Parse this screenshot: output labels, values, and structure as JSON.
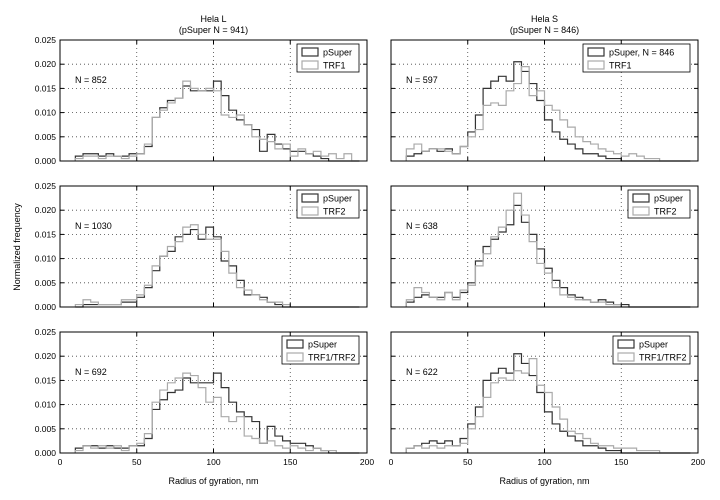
{
  "figure": {
    "ylabel": "Normalized frequency",
    "xlabel": "Radius of gyration, nm",
    "columns": [
      {
        "title_line1": "Hela L",
        "title_line2": "(pSuper N = 941)"
      },
      {
        "title_line1": "Hela S",
        "title_line2": "(pSuper N = 846)"
      }
    ]
  },
  "colors": {
    "series_dark": "#333333",
    "series_light": "#aaaaaa",
    "grid": "#444444"
  },
  "chart_data": [
    {
      "type": "histogram",
      "panel": "row1-col1",
      "annotation": "N = 852",
      "xlim": [
        0,
        200
      ],
      "ylim": [
        0,
        0.025
      ],
      "grid": true,
      "legend": "top-right",
      "xticks": [
        0,
        50,
        100,
        150,
        200
      ],
      "yticks": [
        0,
        0.005,
        0.01,
        0.015,
        0.02,
        0.025
      ],
      "bin_edges": [
        10,
        15,
        20,
        25,
        30,
        35,
        40,
        45,
        50,
        55,
        60,
        65,
        70,
        75,
        80,
        85,
        90,
        95,
        100,
        105,
        110,
        115,
        120,
        125,
        130,
        135,
        140,
        145,
        150,
        155,
        160,
        165,
        170,
        175,
        180,
        185,
        190,
        195
      ],
      "series": [
        {
          "name": "pSuper",
          "color": "#333333",
          "values": [
            0.001,
            0.0015,
            0.0015,
            0.001,
            0.0015,
            0.001,
            0.001,
            0.0015,
            0.0015,
            0.003,
            0.009,
            0.011,
            0.0125,
            0.013,
            0.0155,
            0.0145,
            0.0145,
            0.0145,
            0.0165,
            0.0135,
            0.0105,
            0.0085,
            0.0075,
            0.0065,
            0.002,
            0.0055,
            0.0035,
            0.0025,
            0.002,
            0.002,
            0.0015,
            0.001,
            0.0005,
            0,
            0,
            0,
            0
          ]
        },
        {
          "name": "TRF1",
          "color": "#aaaaaa",
          "values": [
            0.0005,
            0.001,
            0.001,
            0.0005,
            0.001,
            0.001,
            0.0005,
            0.001,
            0.0015,
            0.0035,
            0.009,
            0.0105,
            0.012,
            0.013,
            0.0165,
            0.015,
            0.0145,
            0.015,
            0.0145,
            0.0095,
            0.009,
            0.0095,
            0.0075,
            0.005,
            0.0045,
            0.004,
            0.0025,
            0.0035,
            0.001,
            0.0025,
            0.0015,
            0.002,
            0.001,
            0.0015,
            0.0005,
            0.0015,
            0
          ]
        }
      ]
    },
    {
      "type": "histogram",
      "panel": "row1-col2",
      "annotation": "N = 597",
      "xlim": [
        0,
        200
      ],
      "ylim": [
        0,
        0.025
      ],
      "grid": true,
      "legend": "top-right",
      "xticks": [
        0,
        50,
        100,
        150,
        200
      ],
      "yticks": [
        0,
        0.005,
        0.01,
        0.015,
        0.02,
        0.025
      ],
      "bin_edges": [
        10,
        15,
        20,
        25,
        30,
        35,
        40,
        45,
        50,
        55,
        60,
        65,
        70,
        75,
        80,
        85,
        90,
        95,
        100,
        105,
        110,
        115,
        120,
        125,
        130,
        135,
        140,
        145,
        150,
        155,
        160,
        165,
        170,
        175,
        180,
        185,
        190,
        195
      ],
      "series": [
        {
          "name": "pSuper, N = 846",
          "color": "#333333",
          "values": [
            0.001,
            0.0015,
            0.002,
            0.0025,
            0.002,
            0.0025,
            0.0015,
            0.003,
            0.006,
            0.0095,
            0.015,
            0.0165,
            0.0175,
            0.0165,
            0.0205,
            0.0185,
            0.016,
            0.0125,
            0.0085,
            0.006,
            0.0045,
            0.0035,
            0.0025,
            0.0015,
            0.0015,
            0.001,
            0.0005,
            0.0005,
            0,
            0,
            0,
            0,
            0,
            0,
            0,
            0,
            0
          ]
        },
        {
          "name": "TRF1",
          "color": "#aaaaaa",
          "values": [
            0.0025,
            0.0035,
            0.002,
            0.0025,
            0.0025,
            0.002,
            0.0015,
            0.003,
            0.005,
            0.0065,
            0.0115,
            0.012,
            0.0115,
            0.0145,
            0.016,
            0.0195,
            0.0135,
            0.0145,
            0.0115,
            0.0105,
            0.0085,
            0.007,
            0.005,
            0.004,
            0.0035,
            0.0025,
            0.002,
            0.0015,
            0.001,
            0.0015,
            0.001,
            0.0005,
            0.0005,
            0,
            0,
            0,
            0
          ]
        }
      ]
    },
    {
      "type": "histogram",
      "panel": "row2-col1",
      "annotation": "N = 1030",
      "xlim": [
        0,
        200
      ],
      "ylim": [
        0,
        0.025
      ],
      "grid": true,
      "legend": "top-right",
      "xticks": [
        0,
        50,
        100,
        150,
        200
      ],
      "yticks": [
        0,
        0.005,
        0.01,
        0.015,
        0.02,
        0.025
      ],
      "bin_edges": [
        10,
        15,
        20,
        25,
        30,
        35,
        40,
        45,
        50,
        55,
        60,
        65,
        70,
        75,
        80,
        85,
        90,
        95,
        100,
        105,
        110,
        115,
        120,
        125,
        130,
        135,
        140,
        145,
        150,
        155,
        160,
        165,
        170,
        175,
        180,
        185,
        190,
        195
      ],
      "series": [
        {
          "name": "pSuper",
          "color": "#333333",
          "values": [
            0,
            0.0005,
            0.0005,
            0.0005,
            0.0005,
            0.0005,
            0.001,
            0.001,
            0.002,
            0.004,
            0.0075,
            0.0105,
            0.0115,
            0.0145,
            0.015,
            0.016,
            0.014,
            0.0165,
            0.0145,
            0.0095,
            0.0085,
            0.0055,
            0.0025,
            0.0025,
            0.002,
            0.001,
            0.0005,
            0,
            0,
            0,
            0,
            0,
            0,
            0,
            0,
            0,
            0
          ]
        },
        {
          "name": "TRF2",
          "color": "#aaaaaa",
          "values": [
            0.0005,
            0.0015,
            0.001,
            0.0005,
            0.0005,
            0.0005,
            0.0015,
            0.0015,
            0.0025,
            0.0045,
            0.0085,
            0.0105,
            0.0125,
            0.0135,
            0.0165,
            0.017,
            0.015,
            0.014,
            0.014,
            0.0115,
            0.007,
            0.004,
            0.0035,
            0.0025,
            0.0015,
            0.001,
            0.001,
            0.0005,
            0,
            0,
            0,
            0,
            0,
            0,
            0,
            0,
            0
          ]
        }
      ]
    },
    {
      "type": "histogram",
      "panel": "row2-col2",
      "annotation": "N = 638",
      "xlim": [
        0,
        200
      ],
      "ylim": [
        0,
        0.025
      ],
      "grid": true,
      "legend": "top-right",
      "xticks": [
        0,
        50,
        100,
        150,
        200
      ],
      "yticks": [
        0,
        0.005,
        0.01,
        0.015,
        0.02,
        0.025
      ],
      "bin_edges": [
        10,
        15,
        20,
        25,
        30,
        35,
        40,
        45,
        50,
        55,
        60,
        65,
        70,
        75,
        80,
        85,
        90,
        95,
        100,
        105,
        110,
        115,
        120,
        125,
        130,
        135,
        140,
        145,
        150,
        155,
        160,
        165,
        170,
        175,
        180,
        185,
        190,
        195
      ],
      "series": [
        {
          "name": "pSuper",
          "color": "#333333",
          "values": [
            0.001,
            0.002,
            0.0025,
            0.002,
            0.002,
            0.003,
            0.002,
            0.003,
            0.005,
            0.0095,
            0.0125,
            0.014,
            0.0155,
            0.017,
            0.021,
            0.0175,
            0.015,
            0.012,
            0.008,
            0.0055,
            0.004,
            0.0025,
            0.002,
            0.0015,
            0.001,
            0.0015,
            0.001,
            0.0005,
            0.0005,
            0,
            0,
            0,
            0,
            0,
            0,
            0,
            0
          ]
        },
        {
          "name": "TRF2",
          "color": "#aaaaaa",
          "values": [
            0.0015,
            0.004,
            0.003,
            0.002,
            0.0015,
            0.003,
            0.0015,
            0.0035,
            0.0045,
            0.0085,
            0.011,
            0.0145,
            0.0165,
            0.02,
            0.0235,
            0.019,
            0.0135,
            0.009,
            0.007,
            0.004,
            0.0025,
            0.002,
            0.0015,
            0.0015,
            0.001,
            0.001,
            0.0005,
            0.0005,
            0,
            0,
            0,
            0,
            0,
            0,
            0,
            0,
            0
          ]
        }
      ]
    },
    {
      "type": "histogram",
      "panel": "row3-col1",
      "annotation": "N = 692",
      "xlim": [
        0,
        200
      ],
      "ylim": [
        0,
        0.025
      ],
      "grid": true,
      "legend": "top-right",
      "xticks": [
        0,
        50,
        100,
        150,
        200
      ],
      "yticks": [
        0,
        0.005,
        0.01,
        0.015,
        0.02,
        0.025
      ],
      "bin_edges": [
        10,
        15,
        20,
        25,
        30,
        35,
        40,
        45,
        50,
        55,
        60,
        65,
        70,
        75,
        80,
        85,
        90,
        95,
        100,
        105,
        110,
        115,
        120,
        125,
        130,
        135,
        140,
        145,
        150,
        155,
        160,
        165,
        170,
        175,
        180,
        185,
        190,
        195
      ],
      "series": [
        {
          "name": "pSuper",
          "color": "#333333",
          "values": [
            0.001,
            0.0015,
            0.0015,
            0.001,
            0.0015,
            0.001,
            0.001,
            0.0015,
            0.0015,
            0.003,
            0.009,
            0.011,
            0.0125,
            0.013,
            0.0155,
            0.0145,
            0.0145,
            0.0145,
            0.0165,
            0.0135,
            0.0105,
            0.0085,
            0.0075,
            0.0065,
            0.002,
            0.0055,
            0.0035,
            0.0025,
            0.002,
            0.002,
            0.0015,
            0.001,
            0.0005,
            0,
            0,
            0,
            0
          ]
        },
        {
          "name": "TRF1/TRF2",
          "color": "#aaaaaa",
          "values": [
            0.0005,
            0.0015,
            0.001,
            0.0015,
            0.001,
            0.0015,
            0.0005,
            0.0015,
            0.002,
            0.004,
            0.0105,
            0.013,
            0.0145,
            0.0155,
            0.0165,
            0.016,
            0.0135,
            0.0105,
            0.0115,
            0.0075,
            0.0065,
            0.0075,
            0.0035,
            0.003,
            0.002,
            0.0025,
            0.0015,
            0.001,
            0.0015,
            0.001,
            0.0005,
            0.001,
            0.0005,
            0.0005,
            0,
            0,
            0
          ]
        }
      ]
    },
    {
      "type": "histogram",
      "panel": "row3-col2",
      "annotation": "N = 622",
      "xlim": [
        0,
        200
      ],
      "ylim": [
        0,
        0.025
      ],
      "grid": true,
      "legend": "top-right",
      "xticks": [
        0,
        50,
        100,
        150,
        200
      ],
      "yticks": [
        0,
        0.005,
        0.01,
        0.015,
        0.02,
        0.025
      ],
      "bin_edges": [
        10,
        15,
        20,
        25,
        30,
        35,
        40,
        45,
        50,
        55,
        60,
        65,
        70,
        75,
        80,
        85,
        90,
        95,
        100,
        105,
        110,
        115,
        120,
        125,
        130,
        135,
        140,
        145,
        150,
        155,
        160,
        165,
        170,
        175,
        180,
        185,
        190,
        195
      ],
      "series": [
        {
          "name": "pSuper",
          "color": "#333333",
          "values": [
            0.001,
            0.0015,
            0.002,
            0.0025,
            0.002,
            0.0025,
            0.0015,
            0.003,
            0.006,
            0.0095,
            0.015,
            0.0165,
            0.0175,
            0.0165,
            0.0205,
            0.0185,
            0.016,
            0.0125,
            0.0085,
            0.006,
            0.0045,
            0.0035,
            0.0025,
            0.0015,
            0.0015,
            0.001,
            0.0005,
            0.0005,
            0,
            0,
            0,
            0,
            0,
            0,
            0,
            0,
            0
          ]
        },
        {
          "name": "TRF1/TRF2",
          "color": "#aaaaaa",
          "values": [
            0.001,
            0.0015,
            0.001,
            0.0015,
            0.001,
            0.0015,
            0.0015,
            0.002,
            0.005,
            0.0075,
            0.0115,
            0.0145,
            0.0155,
            0.015,
            0.017,
            0.0165,
            0.0195,
            0.014,
            0.0125,
            0.0095,
            0.007,
            0.0045,
            0.004,
            0.003,
            0.002,
            0.0015,
            0.0015,
            0.001,
            0.001,
            0.001,
            0.0005,
            0.0005,
            0.0005,
            0,
            0,
            0,
            0
          ]
        }
      ]
    }
  ]
}
